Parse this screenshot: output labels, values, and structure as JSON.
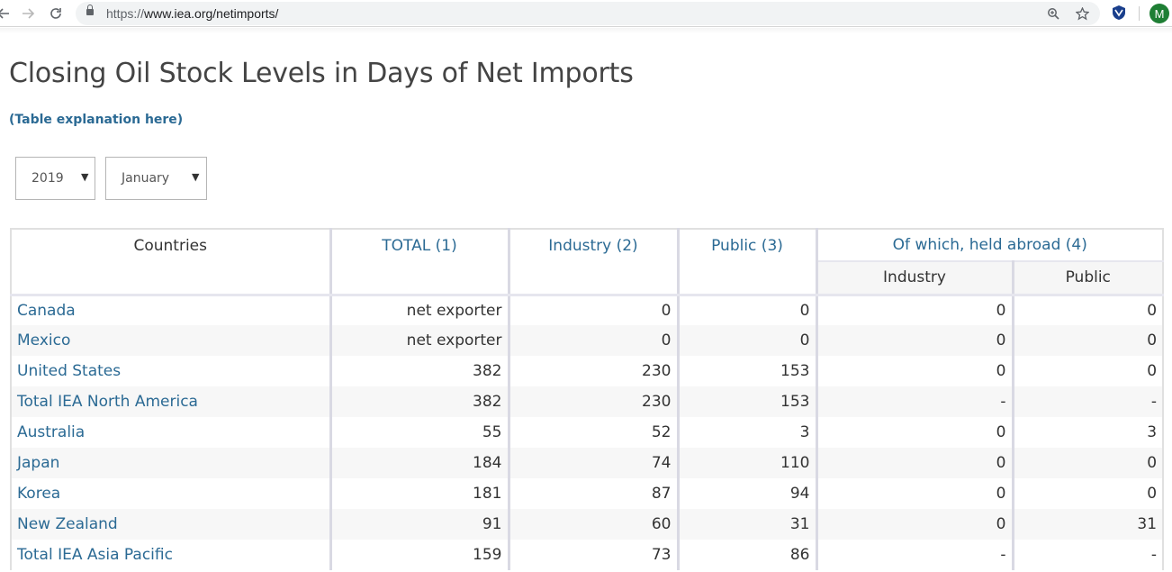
{
  "browser": {
    "url_protocol": "https://",
    "url_rest": "www.iea.org/netimports/",
    "avatar_letter": "M"
  },
  "page": {
    "title": "Closing Oil Stock Levels in Days of Net Imports",
    "explanation_link": "(Table explanation here)"
  },
  "filters": {
    "year": "2019",
    "month": "January"
  },
  "table": {
    "headers": {
      "countries": "Countries",
      "total": "TOTAL (1)",
      "industry": "Industry (2)",
      "public": "Public (3)",
      "held_abroad": "Of which, held abroad (4)",
      "abroad_industry": "Industry",
      "abroad_public": "Public"
    },
    "rows": [
      {
        "country": "Canada",
        "total": "net exporter",
        "industry": "0",
        "public": "0",
        "abroad_industry": "0",
        "abroad_public": "0"
      },
      {
        "country": "Mexico",
        "total": "net exporter",
        "industry": "0",
        "public": "0",
        "abroad_industry": "0",
        "abroad_public": "0"
      },
      {
        "country": "United States",
        "total": "382",
        "industry": "230",
        "public": "153",
        "abroad_industry": "0",
        "abroad_public": "0"
      },
      {
        "country": "Total IEA North America",
        "total": "382",
        "industry": "230",
        "public": "153",
        "abroad_industry": "-",
        "abroad_public": "-"
      },
      {
        "country": "Australia",
        "total": "55",
        "industry": "52",
        "public": "3",
        "abroad_industry": "0",
        "abroad_public": "3"
      },
      {
        "country": "Japan",
        "total": "184",
        "industry": "74",
        "public": "110",
        "abroad_industry": "0",
        "abroad_public": "0"
      },
      {
        "country": "Korea",
        "total": "181",
        "industry": "87",
        "public": "94",
        "abroad_industry": "0",
        "abroad_public": "0"
      },
      {
        "country": "New Zealand",
        "total": "91",
        "industry": "60",
        "public": "31",
        "abroad_industry": "0",
        "abroad_public": "31"
      },
      {
        "country": "Total IEA Asia Pacific",
        "total": "159",
        "industry": "73",
        "public": "86",
        "abroad_industry": "-",
        "abroad_public": "-"
      }
    ]
  }
}
